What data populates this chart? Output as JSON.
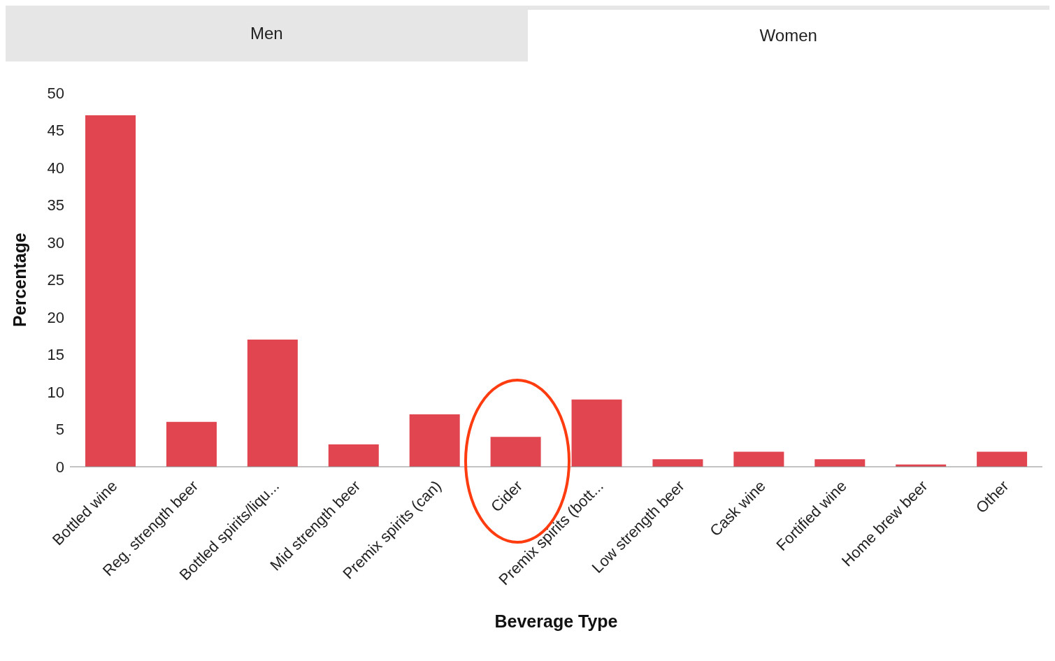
{
  "chart_data": {
    "type": "bar",
    "xlabel": "Beverage Type",
    "ylabel": "Percentage",
    "annotations": [
      "Men",
      "Women"
    ],
    "categories": [
      "Bottled wine",
      "Reg. strength beer",
      "Bottled spirits/liqu...",
      "Mid strength beer",
      "Premix spirits (can)",
      "Cider",
      "Premix spirits (bott...",
      "Low strength beer",
      "Cask wine",
      "Fortified wine",
      "Home brew beer",
      "Other"
    ],
    "values": [
      47,
      6,
      17,
      3,
      7,
      4,
      9,
      1,
      2,
      1,
      0.3,
      2
    ],
    "color": "#e04550",
    "ylim": [
      0,
      50
    ],
    "yticks": [
      0,
      5,
      10,
      15,
      20,
      25,
      30,
      35,
      40,
      45,
      50
    ],
    "grid": false,
    "legend": false
  }
}
